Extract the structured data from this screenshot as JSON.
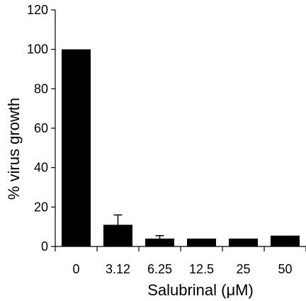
{
  "chart_data": {
    "type": "bar",
    "title": "",
    "xlabel": "Salubrinal (μM)",
    "ylabel": "% virus growth",
    "categories": [
      "0",
      "3.12",
      "6.25",
      "12.5",
      "25",
      "50"
    ],
    "values": [
      100,
      11,
      4,
      4,
      4,
      5.5
    ],
    "error_bars": [
      null,
      5,
      1.5,
      null,
      null,
      null
    ],
    "ylim": [
      0,
      120
    ],
    "yticks": [
      "0",
      "20",
      "40",
      "60",
      "80",
      "100",
      "120"
    ],
    "grid": false,
    "bar_color": "#000000"
  }
}
